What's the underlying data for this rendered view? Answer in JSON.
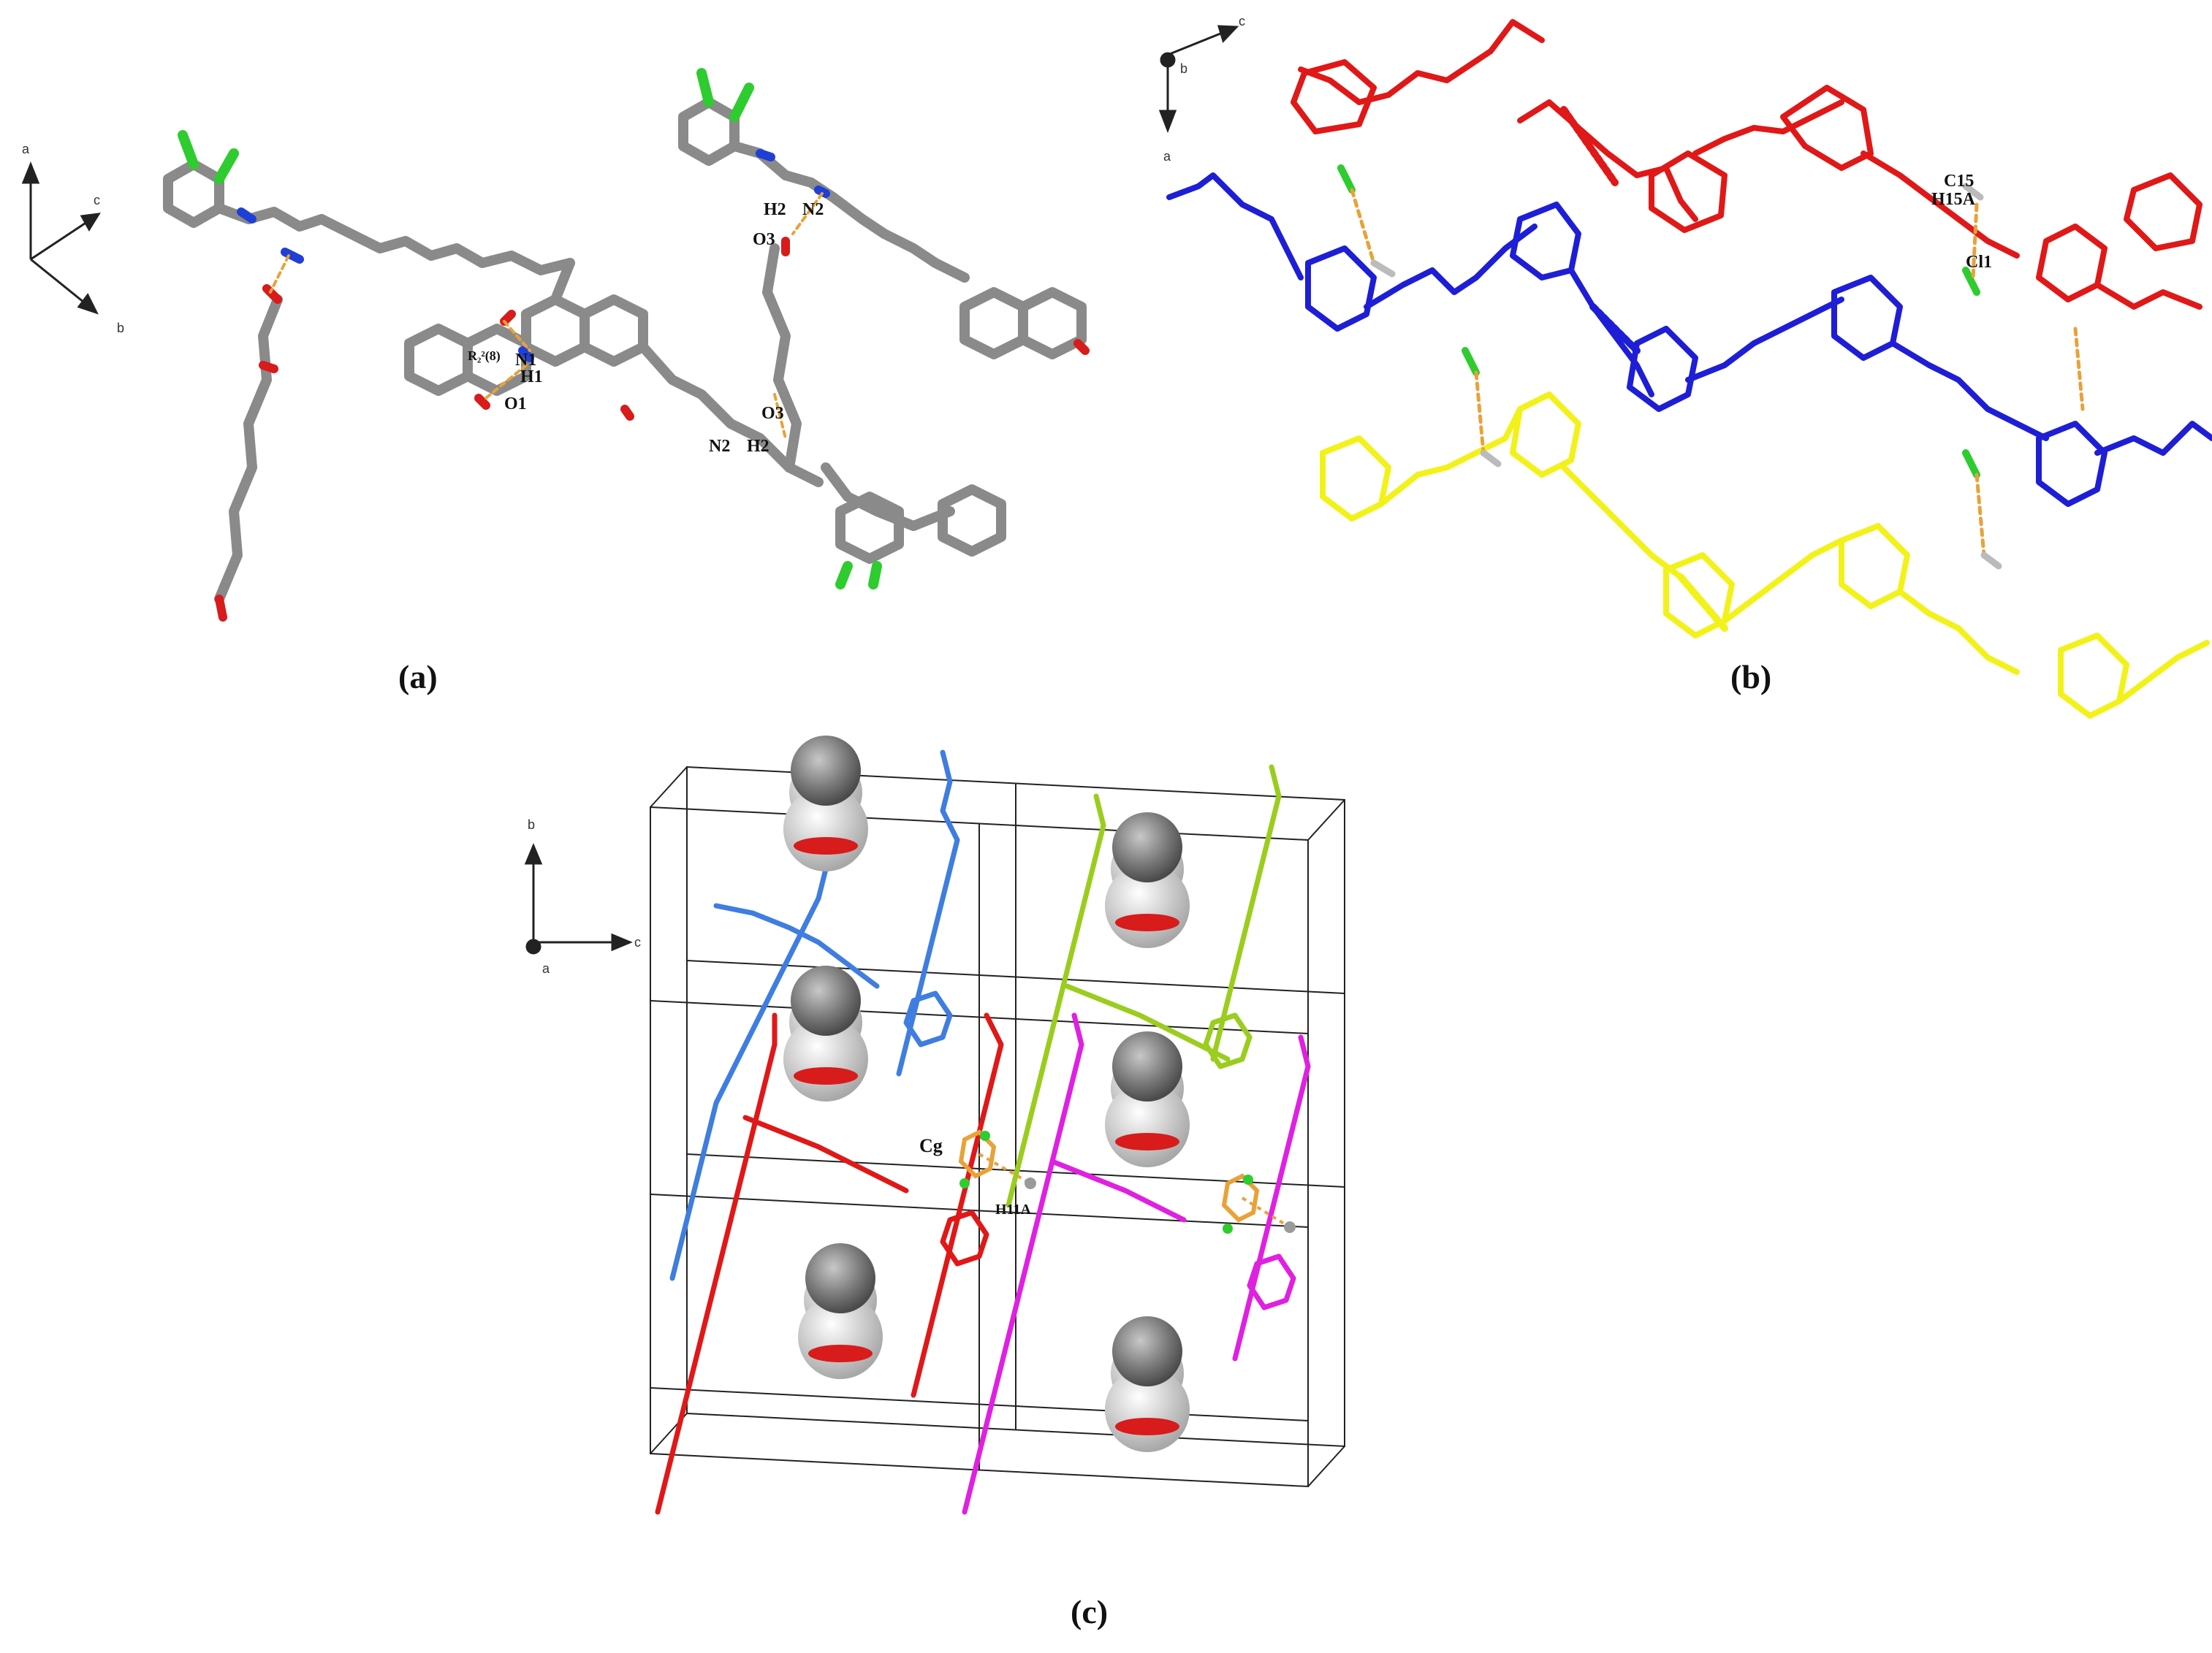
{
  "panels": {
    "a": {
      "caption": "(a)",
      "axes": {
        "a": "a",
        "b": "b",
        "c": "c"
      },
      "atom_labels": {
        "ring_motif": "R₂²(8)",
        "n1": "N1",
        "h1": "H1",
        "o1": "O1",
        "h2_top": "H2",
        "n2_top": "N2",
        "o3_top": "O3",
        "o3_bottom": "O3",
        "n2_bottom": "N2",
        "h2_bottom": "H2"
      }
    },
    "b": {
      "caption": "(b)",
      "axes": {
        "a": "a",
        "b": "b",
        "c": "c"
      },
      "atom_labels": {
        "c15": "C15",
        "h15a": "H15A",
        "cl1": "Cl1"
      }
    },
    "c": {
      "caption": "(c)",
      "axes": {
        "a": "a",
        "b": "b",
        "c": "c"
      },
      "atom_labels": {
        "cg": "Cg",
        "h11a": "H11A"
      }
    }
  },
  "colors": {
    "carbon_gray": "#8a8a8a",
    "nitrogen_blue": "#1f3fd6",
    "oxygen_red": "#d81b1b",
    "chlorine_green": "#2ecc2e",
    "hbond_orange": "#e8a23a",
    "chain_red": "#e01818",
    "chain_blue": "#1e1ed6",
    "chain_yellow": "#f2f21a",
    "chain_lightblue": "#3f7de0",
    "chain_lime": "#9acd1e",
    "chain_magenta": "#e020e0"
  }
}
